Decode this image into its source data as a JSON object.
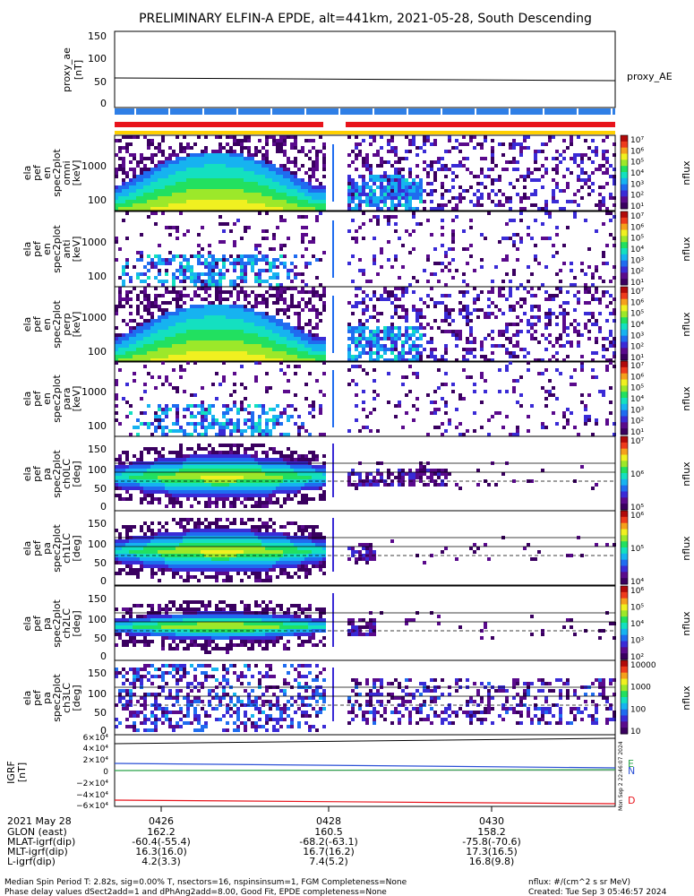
{
  "title": "PRELIMINARY ELFIN-A EPDE, alt=441km, 2021-05-28, South Descending",
  "ae_panel": {
    "ylabel": "proxy_ae",
    "ylabel_unit": "[nT]",
    "yticks": [
      "150",
      "100",
      "50",
      "0"
    ],
    "legend": "proxy_AE"
  },
  "spectrogram_energy": {
    "ylabel_lines": [
      "ela",
      "pef",
      "en",
      "spec2plot",
      "omni"
    ],
    "ylabel_unit": "[keV]",
    "yticks": [
      "1000",
      "100"
    ]
  },
  "spectrogram_energy_2": {
    "ylabel_lines": [
      "ela",
      "pef",
      "en",
      "spec2plot",
      "anti"
    ],
    "ylabel_unit": "[keV]",
    "yticks": [
      "1000",
      "100"
    ]
  },
  "spectrogram_energy_3": {
    "ylabel_lines": [
      "ela",
      "pef",
      "en",
      "spec2plot",
      "perp"
    ],
    "ylabel_unit": "[keV]",
    "yticks": [
      "1000",
      "100"
    ]
  },
  "spectrogram_energy_4": {
    "ylabel_lines": [
      "ela",
      "pef",
      "en",
      "spec2plot",
      "para"
    ],
    "ylabel_unit": "[keV]",
    "yticks": [
      "1000",
      "100"
    ]
  },
  "pitch_panels": [
    {
      "ylabel_lines": [
        "ela",
        "pef",
        "pa",
        "spec2plot",
        "ch0LC"
      ],
      "unit": "[deg]",
      "yticks": [
        "150",
        "100",
        "50",
        "0"
      ]
    },
    {
      "ylabel_lines": [
        "ela",
        "pef",
        "pa",
        "spec2plot",
        "ch1LC"
      ],
      "unit": "[deg]",
      "yticks": [
        "150",
        "100",
        "50",
        "0"
      ]
    },
    {
      "ylabel_lines": [
        "ela",
        "pef",
        "pa",
        "spec2plot",
        "ch2LC"
      ],
      "unit": "[deg]",
      "yticks": [
        "150",
        "100",
        "50",
        "0"
      ]
    },
    {
      "ylabel_lines": [
        "ela",
        "pef",
        "pa",
        "spec2plot",
        "ch3LC"
      ],
      "unit": "[deg]",
      "yticks": [
        "150",
        "100",
        "50",
        "0"
      ]
    }
  ],
  "colorbars": [
    {
      "labels": [
        "10⁷",
        "10⁶",
        "10⁵",
        "10⁴",
        "10³",
        "10²",
        "10¹"
      ],
      "name": "nflux"
    },
    {
      "labels": [
        "10⁷",
        "10⁶",
        "10⁵",
        "10⁴",
        "10³",
        "10²",
        "10¹"
      ],
      "name": "nflux"
    },
    {
      "labels": [
        "10⁷",
        "10⁶",
        "10⁵",
        "10⁴",
        "10³",
        "10²",
        "10¹"
      ],
      "name": "nflux"
    },
    {
      "labels": [
        "10⁷",
        "10⁶",
        "10⁵",
        "10⁴",
        "10³",
        "10²",
        "10¹"
      ],
      "name": "nflux"
    },
    {
      "labels": [
        "10⁷",
        "10⁶",
        "10⁵"
      ],
      "name": "nflux"
    },
    {
      "labels": [
        "10⁶",
        "10⁵",
        "10⁴"
      ],
      "name": "nflux"
    },
    {
      "labels": [
        "10⁶",
        "10⁵",
        "10⁴",
        "10³",
        "10²"
      ],
      "name": "nflux"
    },
    {
      "labels": [
        "10000",
        "1000",
        "100",
        "10"
      ],
      "name": "nflux"
    }
  ],
  "igrf_panel": {
    "ylabel": "IGRF",
    "ylabel_unit": "[nT]",
    "yticks": [
      "6×10⁴",
      "4×10⁴",
      "2×10⁴",
      "0",
      "−2×10⁴",
      "−4×10⁴",
      "−6×10⁴"
    ],
    "legend": [
      "E",
      "N",
      "D"
    ],
    "side_text": "Mon Sep 2 22:46:07 2024"
  },
  "time_axis": {
    "date_label": "2021 May 28",
    "ticks": [
      "0426",
      "0428",
      "0430"
    ]
  },
  "ephemeris": [
    {
      "label": "GLON (east)",
      "values": [
        "162.2",
        "160.5",
        "158.2"
      ]
    },
    {
      "label": "MLAT-igrf(dip)",
      "values": [
        "-60.4(-55.4)",
        "-68.2(-63.1)",
        "-75.8(-70.6)"
      ]
    },
    {
      "label": "MLT-igrf(dip)",
      "values": [
        "16.3(16.0)",
        "16.7(16.2)",
        "17.3(16.5)"
      ]
    },
    {
      "label": "L-igrf(dip)",
      "values": [
        "4.2(3.3)",
        "7.4(5.2)",
        "16.8(9.8)"
      ]
    }
  ],
  "footer": {
    "line1": "Median Spin Period T: 2.82s, sig=0.00% T, nsectors=16, nspinsinsum=1, FGM Completeness=None",
    "line2": "Phase delay values dSect2add=1 and dPhAng2add=8.00, Good Fit, EPDE completeness=None",
    "units": "nflux: #/(cm^2 s sr MeV)",
    "created": "Created: Tue Sep  3 05:46:57 2024"
  },
  "colors": {
    "red_bar": "#e8141c",
    "blue_bar": "#2f7fe6",
    "yellow_bar": "#ffd000"
  }
}
